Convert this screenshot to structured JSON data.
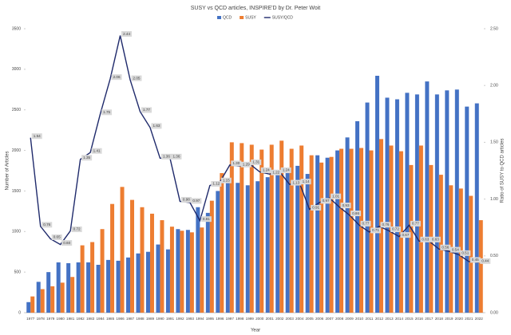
{
  "chart_data": {
    "type": "bar-line",
    "title": "SUSY vs QCD articles, INSPIRE'D by Dr. Peter Woit",
    "x_label": "Year",
    "y_label": "Number of Articles",
    "y2_label": "Ratio of SUSY to QCD articles",
    "categories": [
      "1977",
      "1978",
      "1979",
      "1980",
      "1981",
      "1982",
      "1983",
      "1984",
      "1985",
      "1986",
      "1987",
      "1988",
      "1989",
      "1990",
      "1991",
      "1992",
      "1993",
      "1994",
      "1995",
      "1996",
      "1997",
      "1998",
      "1999",
      "2000",
      "2001",
      "2002",
      "2003",
      "2004",
      "2005",
      "2006",
      "2007",
      "2008",
      "2009",
      "2010",
      "2011",
      "2012",
      "2013",
      "2014",
      "2015",
      "2016",
      "2017",
      "2018",
      "2019",
      "2020",
      "2021",
      "2022"
    ],
    "series": [
      {
        "name": "QCD",
        "type": "bar",
        "color": "#4472c4",
        "values": [
          130,
          380,
          500,
          620,
          610,
          620,
          620,
          590,
          650,
          640,
          680,
          730,
          750,
          840,
          780,
          1030,
          1020,
          1300,
          1230,
          1500,
          1620,
          1600,
          1570,
          1620,
          1670,
          1730,
          1720,
          1810,
          1710,
          1940,
          1910,
          2000,
          2160,
          2360,
          2590,
          2920,
          2650,
          2630,
          2710,
          2690,
          2850,
          2690,
          2740,
          2750,
          2540,
          2580
        ]
      },
      {
        "name": "SUSY",
        "type": "bar",
        "color": "#ed7d31",
        "values": [
          200,
          290,
          325,
          370,
          440,
          830,
          870,
          1030,
          1340,
          1550,
          1390,
          1300,
          1220,
          1140,
          1060,
          1010,
          990,
          1050,
          1380,
          1720,
          2100,
          2090,
          2070,
          2010,
          2070,
          2120,
          2020,
          2060,
          1940,
          1850,
          1920,
          2020,
          2020,
          2030,
          2000,
          2140,
          2060,
          1990,
          1820,
          2060,
          1820,
          1700,
          1570,
          1530,
          1440,
          1140
        ]
      },
      {
        "name": "SUSY/QCD",
        "type": "line",
        "axis": "y2",
        "color": "#1f2a6b",
        "values": [
          1.54,
          0.76,
          0.65,
          0.6,
          0.72,
          1.35,
          1.41,
          1.75,
          2.06,
          2.44,
          2.05,
          1.77,
          1.63,
          1.36,
          1.36,
          0.98,
          0.97,
          0.81,
          1.12,
          1.15,
          1.3,
          1.29,
          1.31,
          1.24,
          1.22,
          1.24,
          1.13,
          1.14,
          0.91,
          0.97,
          1.01,
          0.93,
          0.86,
          0.77,
          0.71,
          0.76,
          0.72,
          0.67,
          0.77,
          0.63,
          0.63,
          0.56,
          0.54,
          0.51,
          0.45,
          0.44
        ],
        "value_labels": [
          "1.54",
          "0.76",
          "0.65",
          "0.60",
          "0.72",
          "1.35",
          "1.41",
          "1.75",
          "2.06",
          "2.44",
          "2.05",
          "1.77",
          "1.63",
          "1.36",
          "1.36",
          "0.98",
          "0.97",
          "0.81",
          "1.12",
          "1.15",
          "1.30",
          "1.29",
          "1.31",
          "1.24",
          "1.22",
          "1.24",
          "1.13",
          "1.14",
          "0.91",
          "0.97",
          "1.01",
          "0.93",
          "0.86",
          "0.77",
          "0.71",
          "0.76",
          "0.72",
          "0.67",
          "0.77",
          "0.63",
          "0.63",
          "0.56",
          "0.54",
          "0.51",
          "0.45",
          "0.44"
        ]
      }
    ],
    "ylim": [
      0,
      3500
    ],
    "yticks": [
      0,
      500,
      1000,
      1500,
      2000,
      2500,
      3000,
      3500
    ],
    "y2lim": [
      0,
      2.5
    ],
    "y2ticks": [
      {
        "value": 0,
        "label": "0.00"
      },
      {
        "value": 0.5,
        "label": "0.50"
      },
      {
        "value": 1,
        "label": "1.00"
      },
      {
        "value": 1.5,
        "label": "1.50"
      },
      {
        "value": 2,
        "label": "2.00"
      },
      {
        "value": 2.5,
        "label": "2.50"
      }
    ],
    "legend": "top",
    "grid": false
  }
}
